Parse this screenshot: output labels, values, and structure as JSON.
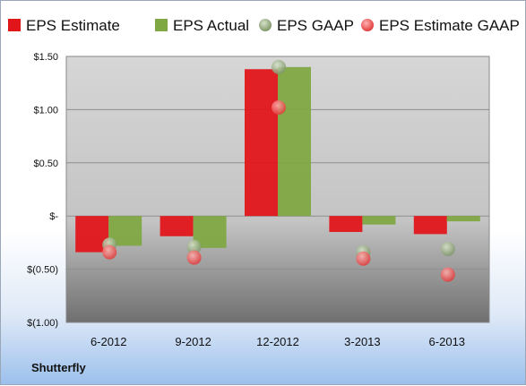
{
  "company": "Shutterfly",
  "chart_data": {
    "type": "bar",
    "categories": [
      "6-2012",
      "9-2012",
      "12-2012",
      "3-2013",
      "6-2013"
    ],
    "series": [
      {
        "name": "EPS Estimate",
        "kind": "bar",
        "color": "#e0161b",
        "values": [
          -0.34,
          -0.19,
          1.38,
          -0.15,
          -0.17
        ]
      },
      {
        "name": "EPS Actual",
        "kind": "bar",
        "color": "#7fa843",
        "values": [
          -0.28,
          -0.3,
          1.4,
          -0.08,
          -0.05
        ]
      },
      {
        "name": "EPS GAAP",
        "kind": "dot",
        "color": "#8fa37a",
        "values": [
          -0.27,
          -0.29,
          1.4,
          -0.34,
          -0.31
        ]
      },
      {
        "name": "EPS Estimate GAAP",
        "kind": "dot",
        "color": "#ee5a5a",
        "values": [
          -0.34,
          -0.39,
          1.02,
          -0.4,
          -0.55
        ]
      }
    ],
    "ylim": [
      -1.0,
      1.5
    ],
    "yticks": [
      1.5,
      1.0,
      0.5,
      0,
      -0.5,
      -1.0
    ],
    "ytick_labels": [
      "$1.50",
      "$1.00",
      "$0.50",
      "$-",
      "$(0.50)",
      "$(1.00)"
    ],
    "grid": true,
    "legend_position": "top",
    "title": "",
    "xlabel": "",
    "ylabel": ""
  }
}
